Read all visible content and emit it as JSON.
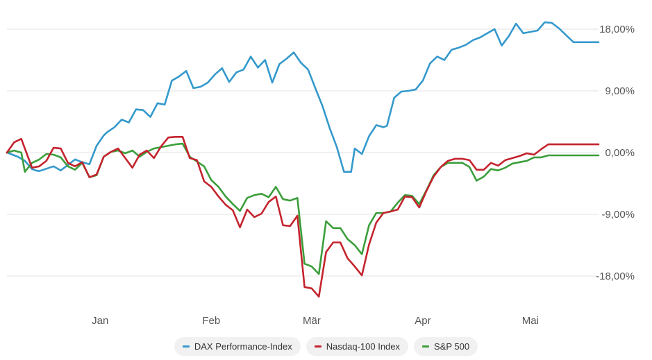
{
  "chart_data": {
    "type": "line",
    "xlabel": "",
    "ylabel": "",
    "x_ticks": [
      "Jan",
      "Feb",
      "Mär",
      "Apr",
      "Mai"
    ],
    "y_ticks": [
      "18,00%",
      "9,00%",
      "0,00%",
      "-9,00%",
      "-18,00%"
    ],
    "y_tick_values": [
      18,
      9,
      0,
      -9,
      -18
    ],
    "ylim": [
      -22,
      20
    ],
    "x_range_days": [
      0,
      165
    ],
    "x_tick_days": [
      26,
      57,
      85,
      116,
      146
    ],
    "grid": true,
    "legend_placement": "bottom",
    "series": [
      {
        "name": "DAX Performance-Index",
        "color": "#3499cc",
        "x": [
          0,
          3,
          5,
          7,
          8,
          9,
          13,
          15,
          17,
          19,
          21,
          23,
          25,
          27,
          28,
          30,
          32,
          34,
          36,
          38,
          40,
          42,
          44,
          46,
          48,
          50,
          52,
          54,
          56,
          58,
          60,
          62,
          64,
          66,
          68,
          70,
          72,
          74,
          76,
          78,
          80,
          82,
          84,
          86,
          88,
          90,
          92,
          94,
          96,
          97,
          99,
          101,
          103,
          105,
          106,
          108,
          110,
          112,
          114,
          116,
          118,
          120,
          122,
          124,
          126,
          128,
          130,
          132,
          134,
          136,
          138,
          140,
          142,
          144,
          146,
          148,
          150,
          152,
          154,
          156,
          158,
          160,
          162,
          164,
          165
        ],
        "y": [
          0.0,
          -0.6,
          -1.2,
          -2.4,
          -2.6,
          -2.7,
          -2.0,
          -2.6,
          -1.8,
          -1.0,
          -1.4,
          -1.7,
          1.0,
          2.5,
          3.0,
          3.7,
          4.8,
          4.4,
          6.3,
          6.2,
          5.2,
          7.2,
          7.0,
          10.5,
          11.1,
          11.9,
          9.4,
          9.6,
          10.2,
          11.4,
          12.3,
          10.3,
          11.7,
          12.1,
          14.0,
          12.4,
          13.5,
          10.2,
          12.9,
          13.7,
          14.6,
          13.1,
          12.1,
          9.4,
          6.8,
          3.6,
          0.8,
          -2.8,
          -2.8,
          0.6,
          -0.2,
          2.4,
          4.0,
          3.7,
          3.9,
          8.0,
          8.9,
          9.0,
          9.2,
          10.5,
          13.0,
          14.0,
          13.5,
          15.0,
          15.3,
          15.7,
          16.4,
          16.8,
          17.4,
          18.0,
          15.6,
          17.0,
          18.8,
          17.4,
          17.6,
          17.8,
          19.0,
          18.9,
          18.1,
          17.1,
          16.1,
          16.1,
          16.1,
          16.1,
          16.1
        ]
      },
      {
        "name": "Nasdaq-100 Index",
        "color": "#c4232d",
        "x": [
          0,
          2,
          4,
          5,
          7,
          9,
          11,
          13,
          15,
          17,
          19,
          21,
          23,
          25,
          27,
          29,
          31,
          33,
          35,
          37,
          39,
          41,
          43,
          45,
          47,
          49,
          51,
          53,
          55,
          57,
          59,
          61,
          63,
          65,
          67,
          69,
          71,
          73,
          75,
          77,
          79,
          81,
          83,
          85,
          87,
          89,
          91,
          93,
          95,
          97,
          99,
          101,
          103,
          105,
          107,
          109,
          111,
          113,
          115,
          117,
          119,
          121,
          123,
          125,
          127,
          129,
          131,
          133,
          135,
          137,
          139,
          141,
          143,
          145,
          147,
          149,
          151,
          153,
          155,
          157,
          159,
          161,
          163,
          165
        ],
        "y": [
          0.0,
          1.5,
          2.0,
          0.6,
          -2.2,
          -2.0,
          -1.2,
          0.7,
          0.6,
          -1.5,
          -2.0,
          -1.4,
          -3.6,
          -3.2,
          -0.6,
          0.1,
          0.6,
          -0.8,
          -2.2,
          -0.3,
          0.3,
          -0.8,
          0.9,
          2.2,
          2.3,
          2.3,
          -0.8,
          -1.1,
          -4.2,
          -5.0,
          -6.4,
          -7.6,
          -8.4,
          -10.9,
          -8.3,
          -9.4,
          -8.9,
          -7.2,
          -6.4,
          -10.6,
          -10.7,
          -9.2,
          -19.6,
          -19.8,
          -21.0,
          -14.5,
          -13.1,
          -13.1,
          -15.4,
          -16.6,
          -17.9,
          -13.4,
          -10.2,
          -8.8,
          -8.6,
          -8.3,
          -6.4,
          -6.5,
          -8.0,
          -5.6,
          -3.5,
          -2.1,
          -1.2,
          -0.9,
          -0.9,
          -1.1,
          -2.5,
          -2.5,
          -1.5,
          -1.9,
          -1.1,
          -0.8,
          -0.5,
          -0.1,
          -0.3,
          0.5,
          1.2,
          1.2,
          1.2,
          1.2,
          1.2,
          1.2,
          1.2,
          1.2
        ]
      },
      {
        "name": "S&P 500",
        "color": "#3b9e3b",
        "x": [
          0,
          2,
          4,
          5,
          7,
          9,
          11,
          13,
          15,
          17,
          19,
          21,
          23,
          25,
          27,
          29,
          31,
          33,
          35,
          37,
          39,
          41,
          43,
          45,
          47,
          49,
          51,
          53,
          55,
          57,
          59,
          61,
          63,
          65,
          67,
          69,
          71,
          73,
          75,
          77,
          79,
          81,
          83,
          85,
          87,
          89,
          91,
          93,
          95,
          97,
          99,
          101,
          103,
          105,
          107,
          109,
          111,
          113,
          115,
          117,
          119,
          121,
          123,
          125,
          127,
          129,
          131,
          133,
          135,
          137,
          139,
          141,
          143,
          145,
          147,
          149,
          151,
          153,
          155,
          157,
          159,
          161,
          163,
          165
        ],
        "y": [
          0.0,
          0.3,
          0.0,
          -2.8,
          -1.5,
          -1.0,
          -0.2,
          -0.3,
          -0.7,
          -2.0,
          -2.5,
          -1.5,
          -3.6,
          -3.3,
          -0.6,
          0.1,
          0.3,
          -0.1,
          0.3,
          -0.6,
          0.1,
          0.6,
          0.8,
          1.0,
          1.2,
          1.3,
          -0.6,
          -1.3,
          -2.0,
          -4.0,
          -5.0,
          -6.4,
          -7.5,
          -8.5,
          -6.6,
          -6.2,
          -6.0,
          -6.5,
          -5.0,
          -6.8,
          -7.0,
          -6.6,
          -16.2,
          -16.6,
          -17.7,
          -10.0,
          -11.0,
          -11.0,
          -12.6,
          -13.5,
          -14.8,
          -10.6,
          -8.8,
          -8.8,
          -8.6,
          -7.3,
          -6.2,
          -6.3,
          -7.5,
          -5.5,
          -3.3,
          -2.1,
          -1.5,
          -1.5,
          -1.5,
          -2.1,
          -4.1,
          -3.5,
          -2.4,
          -2.6,
          -2.2,
          -1.6,
          -1.4,
          -1.2,
          -0.7,
          -0.7,
          -0.4,
          -0.4,
          -0.4,
          -0.4,
          -0.4,
          -0.4,
          -0.4,
          -0.4
        ]
      }
    ]
  }
}
